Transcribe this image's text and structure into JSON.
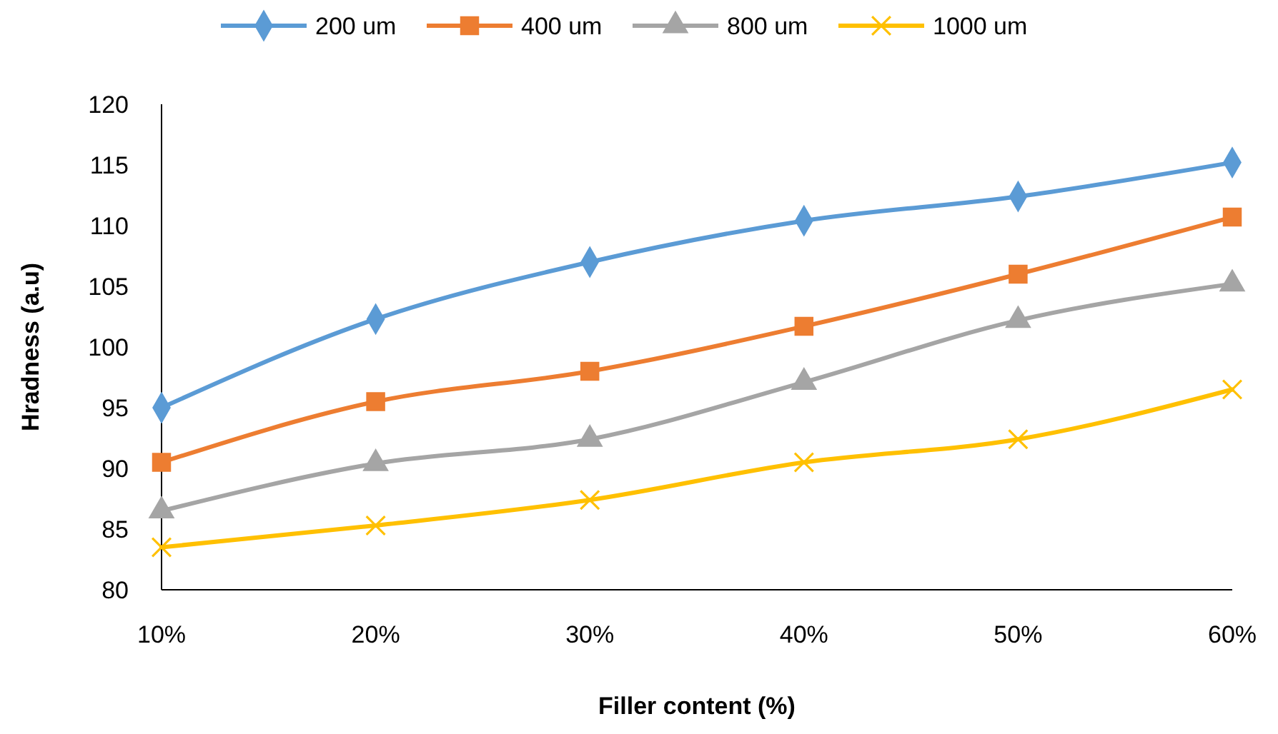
{
  "chart_data": {
    "type": "line",
    "xlabel": "Filler content (%)",
    "ylabel": "Hradness (a.u)",
    "categories": [
      "10%",
      "20%",
      "30%",
      "40%",
      "50%",
      "60%"
    ],
    "ylim": [
      80,
      120
    ],
    "yticks": [
      80,
      85,
      90,
      95,
      100,
      105,
      110,
      115,
      120
    ],
    "grid": false,
    "legend": "top",
    "line_style": "solid",
    "series": [
      {
        "name": "200 um",
        "color": "#5b9bd5",
        "marker": "diamond",
        "values": [
          95,
          102.3,
          107,
          110.4,
          112.4,
          115.2
        ]
      },
      {
        "name": "400 um",
        "color": "#ed7d31",
        "marker": "square",
        "values": [
          90.5,
          95.5,
          98,
          101.7,
          106,
          110.7
        ]
      },
      {
        "name": "800 um",
        "color": "#a5a5a5",
        "marker": "triangle",
        "values": [
          86.5,
          90.4,
          92.4,
          97.1,
          102.2,
          105.2
        ]
      },
      {
        "name": "1000 um",
        "color": "#ffc000",
        "marker": "cross",
        "values": [
          83.5,
          85.3,
          87.4,
          90.5,
          92.4,
          96.5
        ]
      }
    ]
  }
}
